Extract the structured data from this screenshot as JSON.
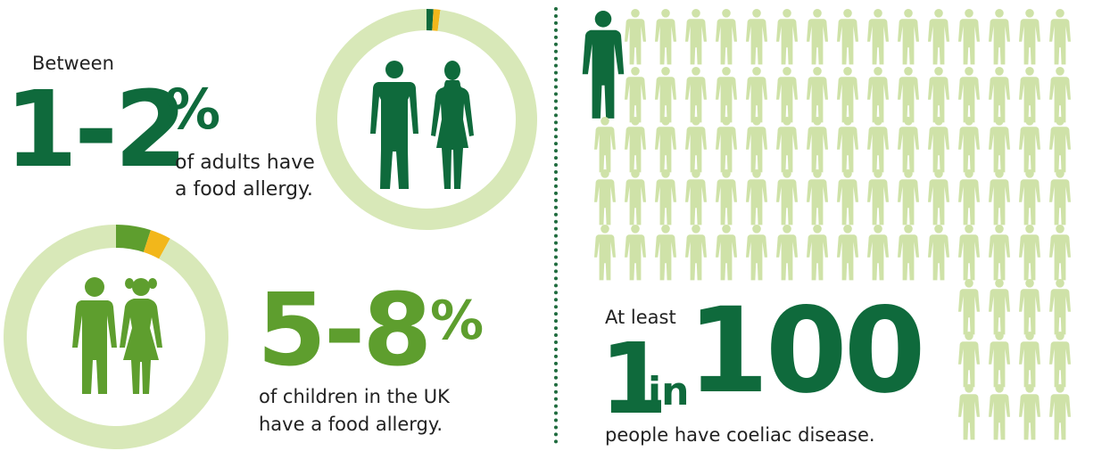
{
  "colors": {
    "dark_green": "#0f6a3c",
    "mid_green": "#5e9e2e",
    "pale_green": "#d8e8b8",
    "icon_pale": "#cfe2a8",
    "yellow": "#f2b71b"
  },
  "icons": {
    "adult_figure": "person-icon",
    "adult_pair": "man-woman-icon",
    "child_pair": "boy-girl-icon"
  },
  "adults": {
    "prefix": "Between",
    "stat": "1-2",
    "unit": "%",
    "caption_line1": "of adults have",
    "caption_line2": "a food allergy."
  },
  "children": {
    "stat": "5-8",
    "unit": "%",
    "caption_line1": "of children in the UK",
    "caption_line2": "have a food allergy."
  },
  "coeliac": {
    "prefix": "At least",
    "num1": "1",
    "word": "in",
    "num2": "100",
    "caption": "people have coeliac disease."
  },
  "chart_data": [
    {
      "type": "pie",
      "subject": "adults",
      "range_percent": [
        1,
        2
      ],
      "color_low": "#0f6a3c",
      "color_range": "#f2b71b",
      "color_rest": "#d8e8b8"
    },
    {
      "type": "pie",
      "subject": "children",
      "range_percent": [
        5,
        8
      ],
      "color_low": "#5e9e2e",
      "color_range": "#f2b71b",
      "color_rest": "#d8e8b8"
    },
    {
      "type": "pictograph",
      "subject": "coeliac",
      "highlighted": 1,
      "total": 100,
      "color_highlight": "#0f6a3c",
      "color_rest": "#cfe2a8"
    }
  ]
}
